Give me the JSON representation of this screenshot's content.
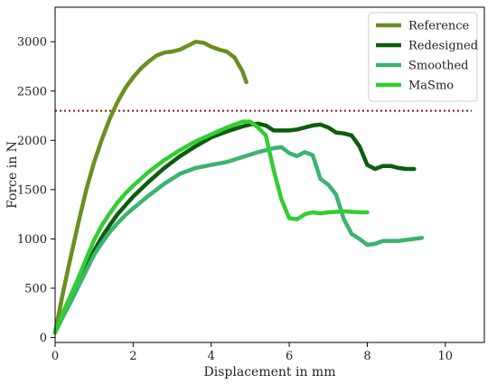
{
  "chart_data": {
    "type": "line",
    "title": "",
    "xlabel": "Displacement in mm",
    "ylabel": "Force in N",
    "xlim": [
      0,
      11
    ],
    "ylim": [
      -50,
      3350
    ],
    "xticks": [
      0,
      2,
      4,
      6,
      8,
      10
    ],
    "yticks": [
      0,
      500,
      1000,
      1500,
      2000,
      2500,
      3000
    ],
    "grid": false,
    "legend_position": "top-right",
    "reference_line": {
      "y": 2300,
      "style": "dotted",
      "color": "#8b1a1a"
    },
    "series": [
      {
        "name": "Reference",
        "color": "#6b8e23",
        "x": [
          0,
          0.2,
          0.4,
          0.6,
          0.8,
          1.0,
          1.2,
          1.4,
          1.6,
          1.8,
          2.0,
          2.2,
          2.4,
          2.6,
          2.8,
          3.0,
          3.2,
          3.4,
          3.6,
          3.8,
          4.0,
          4.2,
          4.4,
          4.6,
          4.8,
          4.9
        ],
        "y": [
          50,
          450,
          820,
          1170,
          1500,
          1780,
          2010,
          2220,
          2390,
          2530,
          2640,
          2730,
          2800,
          2860,
          2890,
          2900,
          2920,
          2960,
          3000,
          2990,
          2950,
          2920,
          2900,
          2840,
          2700,
          2590
        ]
      },
      {
        "name": "Redesigned",
        "color": "#0b5d0b",
        "x": [
          0,
          0.2,
          0.4,
          0.6,
          0.8,
          1.0,
          1.2,
          1.4,
          1.6,
          1.8,
          2.0,
          2.4,
          2.8,
          3.2,
          3.6,
          4.0,
          4.4,
          4.8,
          5.0,
          5.2,
          5.4,
          5.6,
          5.8,
          6.0,
          6.2,
          6.4,
          6.6,
          6.8,
          7.0,
          7.2,
          7.4,
          7.6,
          7.8,
          8.0,
          8.2,
          8.4,
          8.6,
          8.8,
          9.0,
          9.2
        ],
        "y": [
          50,
          230,
          390,
          550,
          720,
          880,
          1020,
          1140,
          1250,
          1340,
          1430,
          1580,
          1720,
          1840,
          1940,
          2030,
          2090,
          2140,
          2160,
          2170,
          2150,
          2100,
          2100,
          2100,
          2110,
          2130,
          2150,
          2160,
          2130,
          2080,
          2070,
          2050,
          1940,
          1750,
          1710,
          1740,
          1740,
          1720,
          1710,
          1710
        ]
      },
      {
        "name": "Smoothed",
        "color": "#3cb371",
        "x": [
          0,
          0.2,
          0.4,
          0.6,
          0.8,
          1.0,
          1.2,
          1.4,
          1.6,
          1.8,
          2.0,
          2.4,
          2.8,
          3.2,
          3.6,
          4.0,
          4.4,
          4.8,
          5.2,
          5.6,
          5.8,
          6.0,
          6.2,
          6.4,
          6.6,
          6.8,
          7.0,
          7.2,
          7.4,
          7.6,
          7.8,
          8.0,
          8.2,
          8.4,
          8.8,
          9.2,
          9.4
        ],
        "y": [
          50,
          210,
          360,
          520,
          680,
          840,
          960,
          1070,
          1160,
          1240,
          1310,
          1440,
          1560,
          1660,
          1720,
          1750,
          1780,
          1830,
          1880,
          1920,
          1930,
          1870,
          1840,
          1880,
          1850,
          1610,
          1550,
          1450,
          1200,
          1050,
          1000,
          940,
          950,
          980,
          980,
          1000,
          1010
        ]
      },
      {
        "name": "MaSmo",
        "color": "#32cd32",
        "x": [
          0,
          0.2,
          0.4,
          0.6,
          0.8,
          1.0,
          1.2,
          1.4,
          1.6,
          1.8,
          2.0,
          2.4,
          2.8,
          3.2,
          3.6,
          4.0,
          4.4,
          4.8,
          5.0,
          5.2,
          5.4,
          5.6,
          5.8,
          6.0,
          6.2,
          6.4,
          6.6,
          6.8,
          7.0,
          7.4,
          7.8,
          8.0
        ],
        "y": [
          50,
          250,
          430,
          610,
          800,
          990,
          1140,
          1260,
          1370,
          1460,
          1540,
          1680,
          1800,
          1900,
          1990,
          2060,
          2130,
          2190,
          2190,
          2130,
          2050,
          1700,
          1400,
          1210,
          1200,
          1250,
          1270,
          1260,
          1270,
          1280,
          1270,
          1270
        ]
      }
    ]
  }
}
